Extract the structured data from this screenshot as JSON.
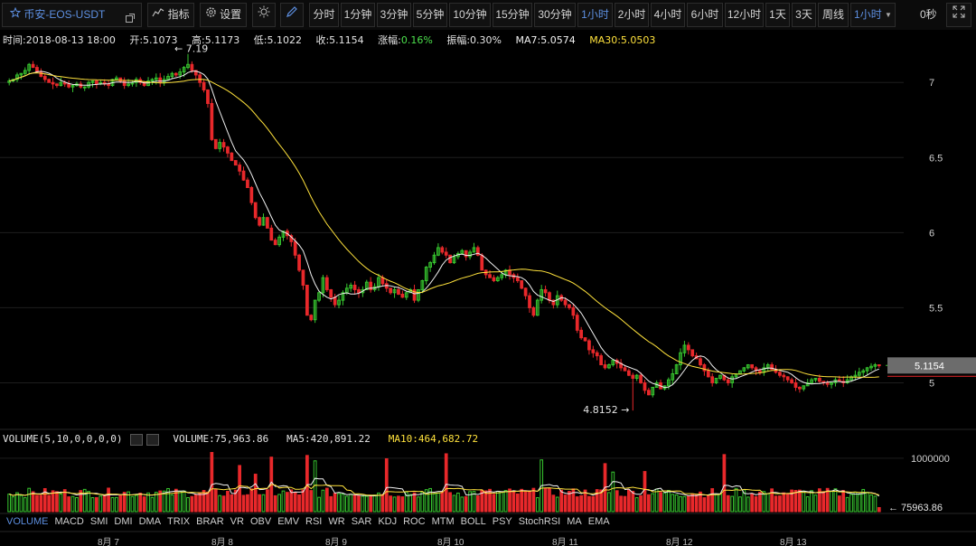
{
  "toolbar": {
    "pair": "币安-EOS-USDT",
    "indicator_label": "指标",
    "settings_label": "设置",
    "timeframes": [
      "分时",
      "1分钟",
      "3分钟",
      "5分钟",
      "10分钟",
      "15分钟",
      "30分钟",
      "1小时",
      "2小时",
      "4小时",
      "6小时",
      "12小时",
      "1天",
      "3天",
      "周线"
    ],
    "active_timeframe": "1小时",
    "period_select": "1小时",
    "countdown": "0秒"
  },
  "info": {
    "time": "时间:2018-08-13 18:00",
    "open": "开:5.1073",
    "high": "高:5.1173",
    "low": "低:5.1022",
    "close": "收:5.1154",
    "change_label": "涨幅:",
    "change_value": "0.16%",
    "amplitude": "振幅:0.30%",
    "ma7": "MA7:5.0574",
    "ma30": "MA30:5.0503"
  },
  "volume_info": {
    "title": "VOLUME(5,10,0,0,0,0)",
    "volume": "VOLUME:75,963.86",
    "ma5": "MA5:420,891.22",
    "ma10": "MA10:464,682.72"
  },
  "indicator_tabs": [
    "VOLUME",
    "MACD",
    "SMI",
    "DMI",
    "DMA",
    "TRIX",
    "BRAR",
    "VR",
    "OBV",
    "EMV",
    "RSI",
    "WR",
    "SAR",
    "KDJ",
    "ROC",
    "MTM",
    "BOLL",
    "PSY",
    "StochRSI",
    "MA",
    "EMA"
  ],
  "active_indicator": "VOLUME",
  "colors": {
    "up": "#37c62f",
    "down": "#e8282b",
    "ma7": "#f0f0f0",
    "ma30": "#ffe23c",
    "accent": "#5d8fe0"
  },
  "chart_data": {
    "type": "candlestick",
    "symbol": "EOS/USDT",
    "interval": "1h",
    "price_axis_ticks": [
      "7",
      "6.5",
      "6",
      "5.5",
      "5"
    ],
    "price_range": [
      4.75,
      7.2
    ],
    "volume_axis_ticks": [
      "1000000"
    ],
    "volume_range": [
      0,
      1200000
    ],
    "last_price": "5.1154",
    "last_volume": "75963.86",
    "max_label": "7.19",
    "min_label": "4.8152",
    "x_labels": [
      "8月 7",
      "8月 8",
      "8月 9",
      "8月 10",
      "8月 11",
      "8月 12",
      "8月 13"
    ],
    "series": [
      {
        "name": "MA7",
        "value": "5.0574"
      },
      {
        "name": "MA30",
        "value": "5.0503"
      }
    ],
    "closes": [
      7.01,
      7.02,
      7.05,
      7.06,
      7.08,
      7.12,
      7.1,
      7.07,
      7.04,
      7.02,
      7.0,
      6.99,
      6.98,
      7.0,
      6.99,
      6.97,
      6.98,
      6.99,
      6.97,
      6.97,
      7.0,
      7.01,
      6.99,
      7.0,
      6.99,
      6.98,
      7.02,
      7.03,
      7.01,
      6.98,
      6.99,
      7.0,
      7.02,
      7.0,
      6.98,
      7.01,
      7.02,
      7.03,
      7.0,
      7.02,
      7.04,
      7.06,
      7.05,
      7.07,
      7.1,
      7.12,
      7.08,
      7.05,
      7.0,
      6.95,
      6.86,
      6.62,
      6.56,
      6.6,
      6.57,
      6.53,
      6.48,
      6.45,
      6.41,
      6.35,
      6.3,
      6.2,
      6.1,
      6.05,
      6.1,
      6.03,
      5.95,
      5.92,
      5.97,
      6.01,
      5.98,
      5.94,
      5.85,
      5.75,
      5.65,
      5.45,
      5.42,
      5.55,
      5.6,
      5.7,
      5.62,
      5.57,
      5.52,
      5.55,
      5.6,
      5.63,
      5.65,
      5.62,
      5.6,
      5.62,
      5.67,
      5.62,
      5.64,
      5.7,
      5.66,
      5.63,
      5.6,
      5.62,
      5.59,
      5.57,
      5.6,
      5.62,
      5.55,
      5.62,
      5.68,
      5.77,
      5.8,
      5.85,
      5.9,
      5.87,
      5.85,
      5.8,
      5.84,
      5.86,
      5.88,
      5.84,
      5.87,
      5.9,
      5.85,
      5.75,
      5.72,
      5.7,
      5.68,
      5.7,
      5.72,
      5.75,
      5.72,
      5.7,
      5.68,
      5.63,
      5.58,
      5.5,
      5.45,
      5.55,
      5.62,
      5.6,
      5.55,
      5.52,
      5.58,
      5.55,
      5.52,
      5.5,
      5.45,
      5.35,
      5.3,
      5.28,
      5.22,
      5.2,
      5.18,
      5.12,
      5.1,
      5.12,
      5.15,
      5.13,
      5.1,
      5.08,
      5.05,
      5.03,
      5.05,
      5.0,
      4.95,
      4.92,
      4.97,
      5.0,
      4.96,
      4.98,
      5.02,
      5.06,
      5.12,
      5.2,
      5.25,
      5.22,
      5.18,
      5.16,
      5.12,
      5.08,
      5.04,
      5.0,
      5.03,
      5.05,
      5.02,
      5.0,
      5.04,
      5.06,
      5.08,
      5.1,
      5.12,
      5.1,
      5.08,
      5.07,
      5.1,
      5.12,
      5.09,
      5.07,
      5.05,
      5.04,
      5.02,
      5.0,
      4.97,
      4.96,
      4.98,
      5.0,
      5.02,
      5.03,
      5.01,
      5.0,
      4.99,
      5.0,
      5.02,
      5.01,
      5.0,
      5.02,
      5.04,
      5.05,
      5.07,
      5.08,
      5.1,
      5.11,
      5.12,
      5.1154
    ]
  }
}
